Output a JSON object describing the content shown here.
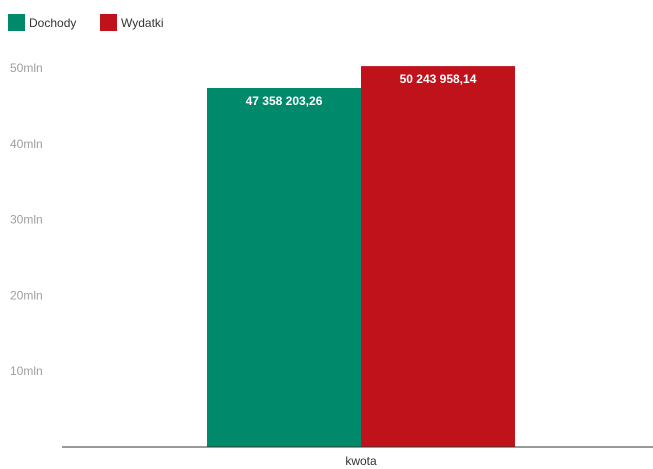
{
  "chart_data": {
    "type": "bar",
    "categories": [
      "kwota"
    ],
    "series": [
      {
        "name": "Dochody",
        "values": [
          47358203.26
        ],
        "label": "47 358 203,26",
        "color": "#00896a"
      },
      {
        "name": "Wydatki",
        "values": [
          50243958.14
        ],
        "label": "50 243 958,14",
        "color": "#c0121a"
      }
    ],
    "ylim": [
      0,
      50000000
    ],
    "y_ticks": [
      {
        "value": 10000000,
        "label": "10mln"
      },
      {
        "value": 20000000,
        "label": "20mln"
      },
      {
        "value": 30000000,
        "label": "30mln"
      },
      {
        "value": 40000000,
        "label": "40mln"
      },
      {
        "value": 50000000,
        "label": "50mln"
      }
    ],
    "legend": "top-left",
    "grid": false,
    "title": "",
    "xlabel": "",
    "ylabel": ""
  }
}
